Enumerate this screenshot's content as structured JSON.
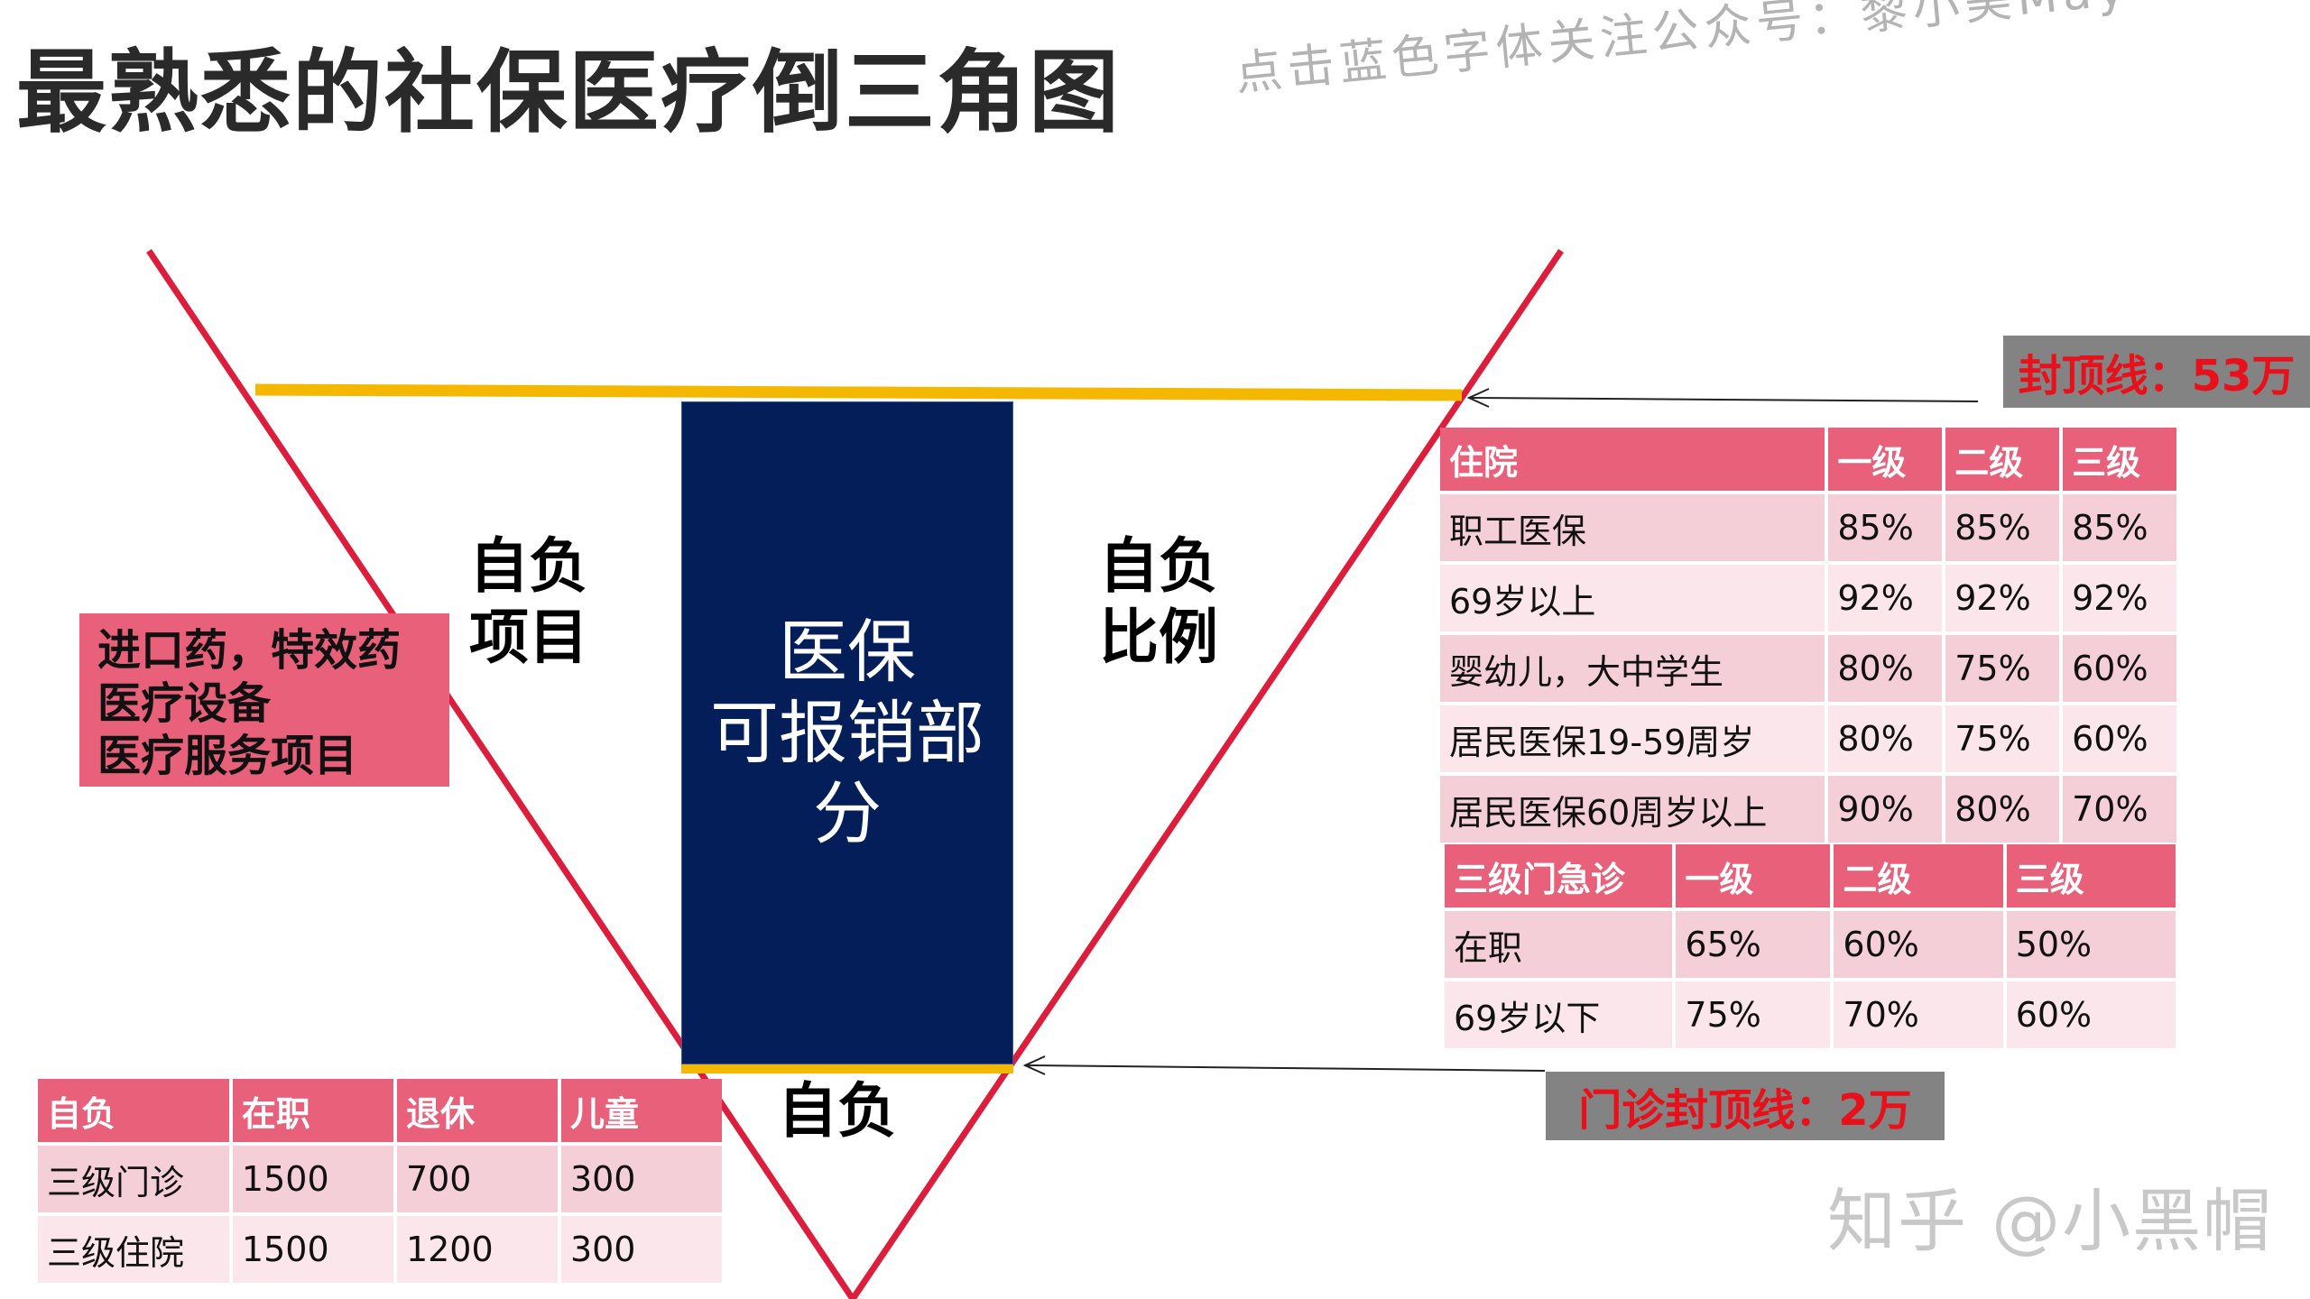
{
  "title": "最熟悉的社保医疗倒三角图",
  "subtitle": "点击蓝色字体关注公众号：黎小美May",
  "labels": {
    "left_self_pay": [
      "自负",
      "项目"
    ],
    "right_self_pay": [
      "自负",
      "比例"
    ],
    "bottom_self_pay": "自负"
  },
  "medical_box": [
    "医保",
    "可报销部",
    "分"
  ],
  "self_pay_items": [
    "进口药，特效药",
    "医疗设备",
    "医疗服务项目"
  ],
  "caps": {
    "inpatient": "封顶线：53万",
    "outpatient": "门诊封顶线：2万"
  },
  "inpatient_table": {
    "headers": [
      "住院",
      "一级",
      "二级",
      "三级"
    ],
    "rows": [
      [
        "职工医保",
        "85%",
        "85%",
        "85%"
      ],
      [
        "69岁以上",
        "92%",
        "92%",
        "92%"
      ],
      [
        "婴幼儿，大中学生",
        "80%",
        "75%",
        "60%"
      ],
      [
        "居民医保19-59周岁",
        "80%",
        "75%",
        "60%"
      ],
      [
        "居民医保60周岁以上",
        "90%",
        "80%",
        "70%"
      ]
    ]
  },
  "outpatient_table": {
    "headers": [
      "三级门急诊",
      "一级",
      "二级",
      "三级"
    ],
    "rows": [
      [
        "在职",
        "65%",
        "60%",
        "50%"
      ],
      [
        "69岁以下",
        "75%",
        "70%",
        "60%"
      ]
    ]
  },
  "self_pay_table": {
    "headers": [
      "自负",
      "在职",
      "退休",
      "儿童"
    ],
    "rows": [
      [
        "三级门诊",
        "1500",
        "700",
        "300"
      ],
      [
        "三级住院",
        "1500",
        "1200",
        "300"
      ]
    ]
  },
  "watermark": "知乎 @小黑帽",
  "colors": {
    "triangle": "#dc1e3c",
    "cap_line": "#f5b800",
    "box_blue": "#041e5a",
    "header_pink": "#e9607a",
    "tag_gray": "#838383",
    "tag_text": "#e8101a"
  }
}
